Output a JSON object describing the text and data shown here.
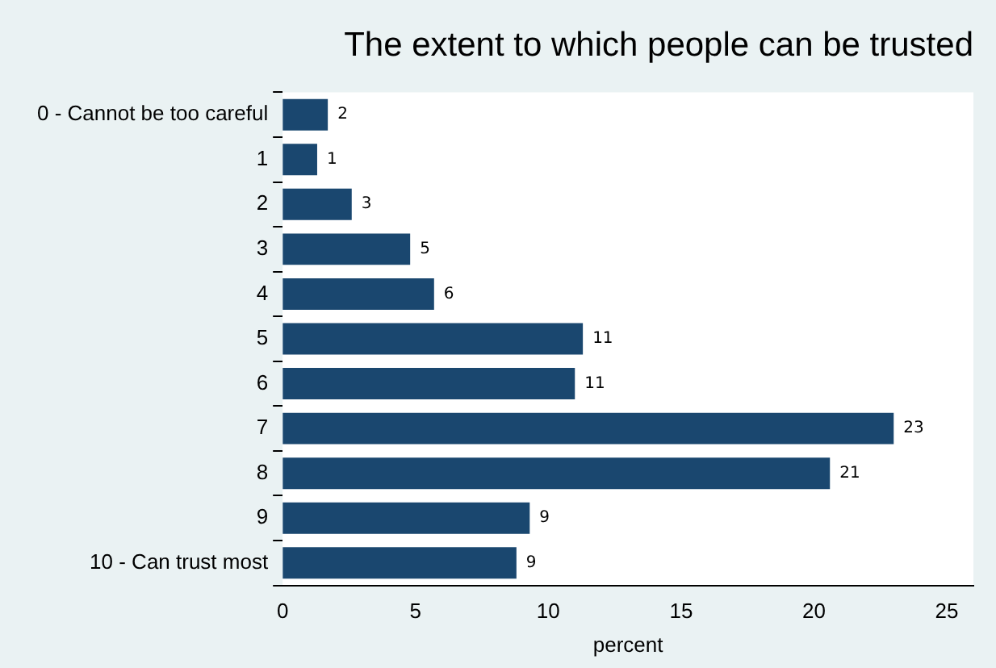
{
  "chart_data": {
    "type": "bar",
    "orientation": "horizontal",
    "title": "The extent to which people can be trusted",
    "xlabel": "percent",
    "categories": [
      "0 - Cannot be too careful",
      "1",
      "2",
      "3",
      "4",
      "5",
      "6",
      "7",
      "8",
      "9",
      "10 - Can trust most"
    ],
    "values": [
      1.7,
      1.3,
      2.6,
      4.8,
      5.7,
      11.3,
      11.0,
      23.0,
      20.6,
      9.3,
      8.8
    ],
    "value_labels": [
      "2",
      "1",
      "3",
      "5",
      "6",
      "11",
      "11",
      "23",
      "21",
      "9",
      "9"
    ],
    "color": "#1a476f",
    "xlim": [
      0,
      26
    ],
    "xticks": [
      0,
      5,
      10,
      15,
      20,
      25
    ],
    "grid": false,
    "legend": false
  }
}
